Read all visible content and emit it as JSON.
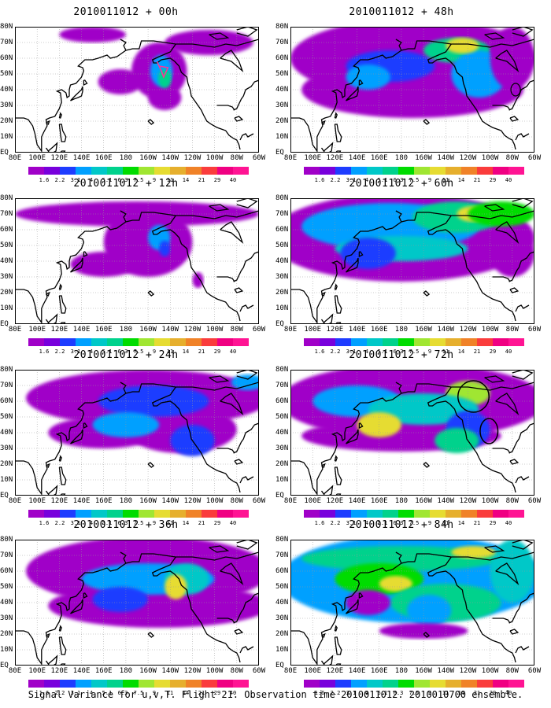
{
  "panels": [
    {
      "title": "2010011012 + 00h"
    },
    {
      "title": "2010011012 + 48h"
    },
    {
      "title": "2010011012 + 12h"
    },
    {
      "title": "2010011012 + 60h"
    },
    {
      "title": "2010011012 + 24h"
    },
    {
      "title": "2010011012 + 72h"
    },
    {
      "title": "2010011012 + 36h"
    },
    {
      "title": "2010011012 + 84h"
    }
  ],
  "lat_labels": [
    "80N",
    "70N",
    "60N",
    "50N",
    "40N",
    "30N",
    "20N",
    "10N",
    "EQ"
  ],
  "lon_labels": [
    "80E",
    "100E",
    "120E",
    "140E",
    "160E",
    "180",
    "160W",
    "140W",
    "120W",
    "100W",
    "80W",
    "60W"
  ],
  "colorbar": {
    "levels": [
      "1.6",
      "2.2",
      "3.1",
      "4",
      "5.1",
      "6.3",
      "7.5",
      "9",
      "11",
      "14",
      "21",
      "29",
      "40"
    ],
    "colors": [
      "#a000c8",
      "#7800dc",
      "#1e3cff",
      "#00a0ff",
      "#00c8c8",
      "#00d28c",
      "#00dc00",
      "#a0e632",
      "#e6dc32",
      "#e6af2d",
      "#f08228",
      "#fa3c3c",
      "#f00082",
      "#ff1493"
    ]
  },
  "caption": "Signal Variance for u,v,T. Flight 21. Observation time 2010011012. 2010010700 ensemble."
}
